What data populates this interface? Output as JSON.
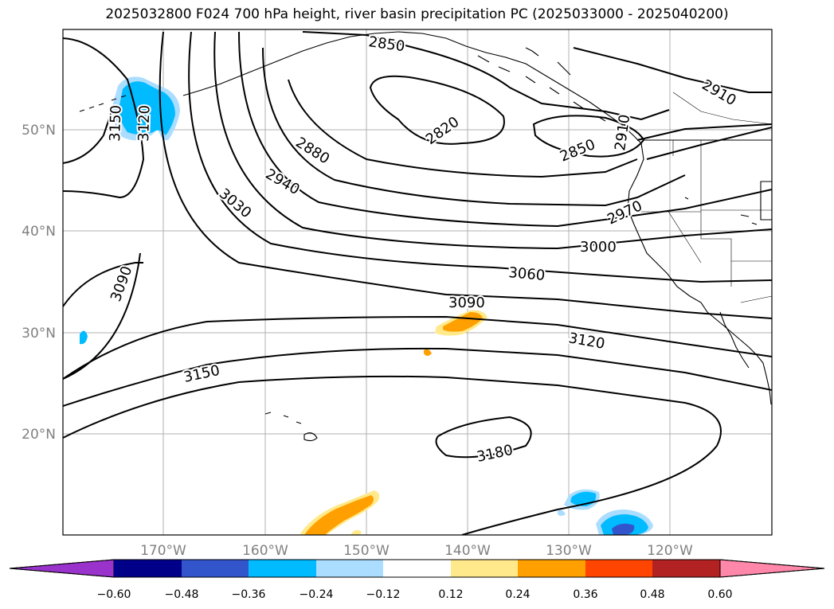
{
  "title": "2025032800 F024 700 hPa height, river basin precipitation PC (2025033000 - 2025040200)",
  "lat_labels": [
    "50°N",
    "40°N",
    "30°N",
    "20°N"
  ],
  "lon_labels": [
    "170°W",
    "160°W",
    "150°W",
    "140°W",
    "130°W",
    "120°W"
  ],
  "contour_labels": [
    "2850",
    "2910",
    "2820",
    "2850",
    "2880",
    "2940",
    "3030",
    "2970",
    "3000",
    "3060",
    "3090",
    "3090",
    "3120",
    "3150",
    "3150",
    "3120",
    "3180",
    "2910"
  ],
  "colorbar": {
    "ticks": [
      "−0.60",
      "−0.48",
      "−0.36",
      "−0.24",
      "−0.12",
      "0.12",
      "0.24",
      "0.36",
      "0.48",
      "0.60"
    ],
    "colors": [
      "#9933cc",
      "#000088",
      "#3355cc",
      "#00bbff",
      "#aaddff",
      "#ffffff",
      "#ffe98a",
      "#ffa000",
      "#ff4500",
      "#b22222",
      "#ff88aa"
    ]
  }
}
